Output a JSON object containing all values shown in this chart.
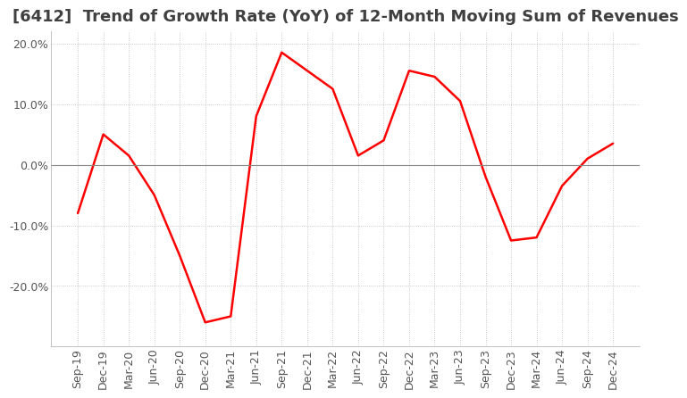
{
  "title": "[6412]  Trend of Growth Rate (YoY) of 12-Month Moving Sum of Revenues",
  "x_labels": [
    "Sep-19",
    "Dec-19",
    "Mar-20",
    "Jun-20",
    "Sep-20",
    "Dec-20",
    "Mar-21",
    "Jun-21",
    "Sep-21",
    "Dec-21",
    "Mar-22",
    "Jun-22",
    "Sep-22",
    "Dec-22",
    "Mar-23",
    "Jun-23",
    "Sep-23",
    "Dec-23",
    "Mar-24",
    "Jun-24",
    "Sep-24",
    "Dec-24"
  ],
  "y_values": [
    -8.0,
    5.0,
    1.5,
    -5.0,
    -15.0,
    -26.0,
    -25.0,
    8.0,
    18.5,
    15.5,
    12.5,
    1.5,
    4.0,
    15.5,
    14.5,
    10.5,
    -2.0,
    -12.5,
    -12.0,
    -3.5,
    1.0,
    3.5
  ],
  "ylim": [
    -30,
    22
  ],
  "yticks": [
    -20.0,
    -10.0,
    0.0,
    10.0,
    20.0
  ],
  "line_color": "#ff0000",
  "background_color": "#ffffff",
  "grid_color": "#bbbbbb",
  "title_fontsize": 13,
  "tick_fontsize": 9,
  "title_color": "#404040"
}
